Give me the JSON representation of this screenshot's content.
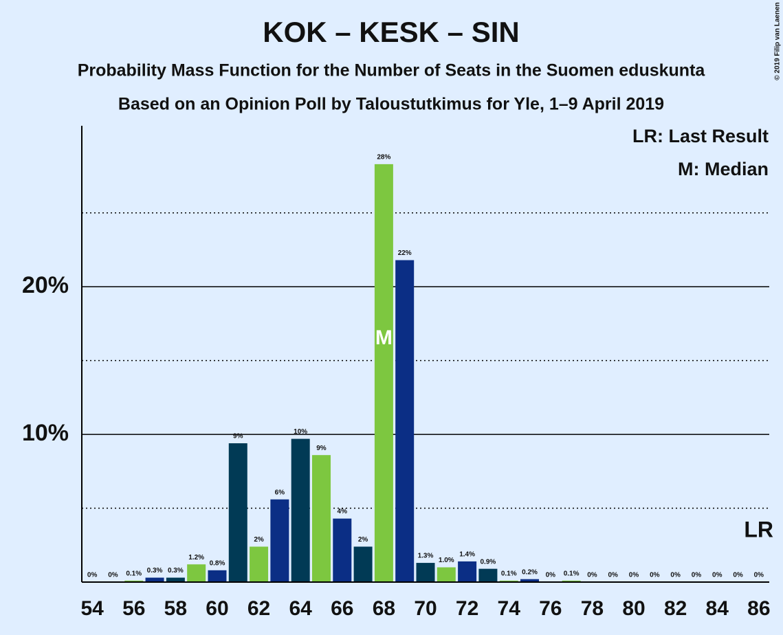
{
  "chart_data": {
    "type": "bar",
    "title": "KOK – KESK – SIN",
    "subtitle": "Probability Mass Function for the Number of Seats in the Suomen eduskunta",
    "subtitle2": "Based on an Opinion Poll by Taloustutkimus for Yle, 1–9 April 2019",
    "copyright": "© 2019 Filip van Laenen",
    "legend": [
      "LR: Last Result",
      "M: Median"
    ],
    "x": [
      54,
      55,
      56,
      57,
      58,
      59,
      60,
      61,
      62,
      63,
      64,
      65,
      66,
      67,
      68,
      69,
      70,
      71,
      72,
      73,
      74,
      75,
      76,
      77,
      78,
      79,
      80,
      81,
      82,
      83,
      84,
      85,
      86
    ],
    "values": [
      0,
      0,
      0.1,
      0.3,
      0.3,
      1.2,
      0.8,
      9.4,
      2.4,
      5.6,
      9.7,
      8.6,
      4.3,
      2.4,
      28.3,
      21.8,
      1.3,
      1.0,
      1.4,
      0.9,
      0.1,
      0.2,
      0,
      0.1,
      0,
      0,
      0,
      0,
      0,
      0,
      0,
      0,
      0
    ],
    "value_labels": [
      "0%",
      "0%",
      "0.1%",
      "0.3%",
      "0.3%",
      "1.2%",
      "0.8%",
      "9%",
      "2%",
      "6%",
      "10%",
      "9%",
      "4%",
      "2%",
      "28%",
      "22%",
      "1.3%",
      "1.0%",
      "1.4%",
      "0.9%",
      "0.1%",
      "0.2%",
      "0%",
      "0.1%",
      "0%",
      "0%",
      "0%",
      "0%",
      "0%",
      "0%",
      "0%",
      "0%",
      "0%"
    ],
    "colors": [
      "#7dc740",
      "#0b2e85",
      "#013a55"
    ],
    "median": 68,
    "median_label": "M",
    "last_result": 86,
    "last_result_label": "LR",
    "xlim": [
      53.5,
      86.5
    ],
    "xticks": [
      54,
      56,
      58,
      60,
      62,
      64,
      66,
      68,
      70,
      72,
      74,
      76,
      78,
      80,
      82,
      84,
      86
    ],
    "ylim": [
      0,
      30.9
    ],
    "yticks": [
      {
        "value": 10,
        "label": "10%"
      },
      {
        "value": 20,
        "label": "20%"
      }
    ],
    "minor_yticks": [
      5,
      15,
      25
    ],
    "grid": true
  }
}
